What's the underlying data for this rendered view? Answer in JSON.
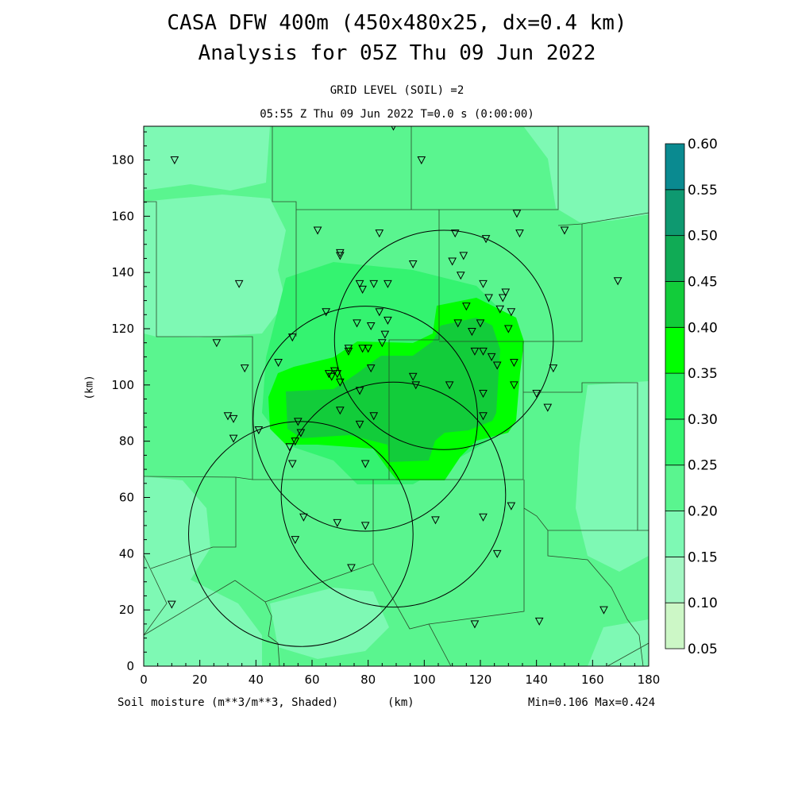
{
  "title": "CASA DFW 400m (450x480x25, dx=0.4 km)",
  "subtitle": "Analysis for 05Z Thu 09 Jun 2022",
  "level_label": "GRID LEVEL (SOIL) =2",
  "time_label": "05:55 Z Thu 09 Jun 2022   T=0.0 s (0:00:00)",
  "field_label": "Soil moisture (m**3/m**3, Shaded)",
  "x_unit_label": "(km)",
  "y_unit_label": "(km)",
  "minmax_label": "Min=0.106 Max=0.424",
  "chart_data": {
    "type": "heatmap",
    "title": "CASA DFW 400m (450x480x25, dx=0.4 km)",
    "variable": "Soil moisture (m**3/m**3, Shaded)",
    "xlabel": "(km)",
    "ylabel": "(km)",
    "xlim": [
      0,
      180
    ],
    "ylim": [
      0,
      192
    ],
    "x_ticks": [
      0,
      20,
      40,
      60,
      80,
      100,
      120,
      140,
      160,
      180
    ],
    "y_ticks": [
      0,
      20,
      40,
      60,
      80,
      100,
      120,
      140,
      160,
      180
    ],
    "min": 0.106,
    "max": 0.424,
    "colorbar": {
      "levels": [
        "0.05",
        "0.10",
        "0.15",
        "0.20",
        "0.25",
        "0.30",
        "0.35",
        "0.40",
        "0.45",
        "0.50",
        "0.55",
        "0.60"
      ],
      "colors": [
        "#ccf7c6",
        "#a3f7c3",
        "#7ef9b4",
        "#5af58f",
        "#34f370",
        "#1ff05a",
        "#00ff00",
        "#12cc3a",
        "#10ab55",
        "#0e9970",
        "#0a8a90",
        "#0a5ef0"
      ]
    },
    "regions": [
      {
        "name": "background",
        "level": 0.2,
        "color": "#5af58f"
      },
      {
        "name": "west-dry-area",
        "level": 0.15,
        "color": "#7ef9b4"
      },
      {
        "name": "southwest-dry-area",
        "level": 0.15,
        "color": "#7ef9b4"
      },
      {
        "name": "east-dry-area",
        "level": 0.15,
        "color": "#7ef9b4"
      },
      {
        "name": "central-moist-area",
        "level": 0.25,
        "color": "#34f370"
      },
      {
        "name": "center-wet-halo",
        "level": 0.35,
        "color": "#00ff00"
      },
      {
        "name": "center-wet-core",
        "level": 0.4,
        "color": "#12cc3a"
      }
    ],
    "radar_rings": [
      {
        "cx": 107,
        "cy": 116,
        "r": 39
      },
      {
        "cx": 79,
        "cy": 88,
        "r": 40
      },
      {
        "cx": 89,
        "cy": 61,
        "r": 40
      },
      {
        "cx": 56,
        "cy": 47,
        "r": 40
      }
    ],
    "stations": [
      [
        11,
        180
      ],
      [
        89,
        192
      ],
      [
        99,
        180
      ],
      [
        62,
        155
      ],
      [
        70,
        147
      ],
      [
        70,
        146
      ],
      [
        84,
        154
      ],
      [
        77,
        136
      ],
      [
        78,
        134
      ],
      [
        82,
        136
      ],
      [
        87,
        136
      ],
      [
        96,
        143
      ],
      [
        111,
        154
      ],
      [
        122,
        152
      ],
      [
        133,
        161
      ],
      [
        134,
        154
      ],
      [
        110,
        144
      ],
      [
        114,
        146
      ],
      [
        113,
        139
      ],
      [
        121,
        136
      ],
      [
        123,
        131
      ],
      [
        128,
        131
      ],
      [
        129,
        133
      ],
      [
        127,
        127
      ],
      [
        131,
        126
      ],
      [
        115,
        128
      ],
      [
        112,
        122
      ],
      [
        117,
        119
      ],
      [
        120,
        122
      ],
      [
        130,
        120
      ],
      [
        84,
        126
      ],
      [
        81,
        121
      ],
      [
        76,
        122
      ],
      [
        87,
        123
      ],
      [
        86,
        118
      ],
      [
        85,
        115
      ],
      [
        78,
        113
      ],
      [
        80,
        113
      ],
      [
        73,
        112
      ],
      [
        53,
        117
      ],
      [
        34,
        136
      ],
      [
        26,
        115
      ],
      [
        36,
        106
      ],
      [
        48,
        108
      ],
      [
        66,
        104
      ],
      [
        68,
        105
      ],
      [
        67,
        103
      ],
      [
        69,
        104
      ],
      [
        70,
        101
      ],
      [
        65,
        126
      ],
      [
        81,
        106
      ],
      [
        96,
        103
      ],
      [
        97,
        100
      ],
      [
        109,
        100
      ],
      [
        118,
        112
      ],
      [
        121,
        112
      ],
      [
        124,
        110
      ],
      [
        126,
        107
      ],
      [
        132,
        108
      ],
      [
        132,
        100
      ],
      [
        140,
        97
      ],
      [
        144,
        92
      ],
      [
        146,
        106
      ],
      [
        121,
        97
      ],
      [
        121,
        89
      ],
      [
        30,
        89
      ],
      [
        32,
        88
      ],
      [
        32,
        81
      ],
      [
        41,
        84
      ],
      [
        52,
        78
      ],
      [
        53,
        72
      ],
      [
        54,
        80
      ],
      [
        55,
        87
      ],
      [
        56,
        83
      ],
      [
        70,
        91
      ],
      [
        77,
        86
      ],
      [
        82,
        89
      ],
      [
        79,
        72
      ],
      [
        69,
        51
      ],
      [
        79,
        50
      ],
      [
        57,
        53
      ],
      [
        54,
        45
      ],
      [
        74,
        35
      ],
      [
        104,
        52
      ],
      [
        121,
        53
      ],
      [
        131,
        57
      ],
      [
        126,
        40
      ],
      [
        118,
        15
      ],
      [
        141,
        16
      ],
      [
        164,
        20
      ],
      [
        10,
        22
      ],
      [
        169,
        137
      ],
      [
        150,
        155
      ],
      [
        73,
        113
      ],
      [
        77,
        98
      ]
    ]
  }
}
